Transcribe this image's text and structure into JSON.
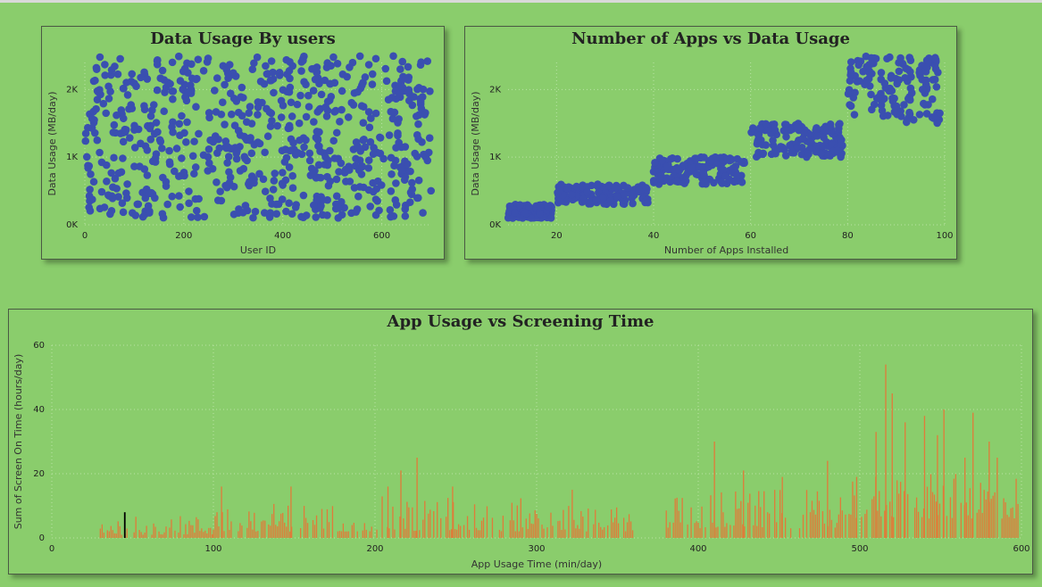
{
  "chart_data": [
    {
      "id": "data-usage-by-users",
      "type": "scatter",
      "title": "Data Usage By users",
      "xlabel": "User ID",
      "ylabel": "Data Usage (MB/day)",
      "xlim": [
        0,
        700
      ],
      "ylim": [
        0,
        2400
      ],
      "xticks": [
        "0",
        "200",
        "400",
        "600"
      ],
      "yticks": [
        "0K",
        "1K",
        "2K"
      ],
      "point_color": "#3a4fb0",
      "n_points": 700,
      "x_range": [
        0,
        700
      ],
      "y_range": [
        100,
        2500
      ],
      "distribution": "uniform random"
    },
    {
      "id": "apps-vs-data-usage",
      "type": "scatter",
      "title": "Number of Apps vs Data Usage",
      "xlabel": "Number of Apps Installed",
      "ylabel": "Data Usage (MB/day)",
      "xlim": [
        10,
        100
      ],
      "ylim": [
        0,
        2400
      ],
      "xticks": [
        "20",
        "40",
        "60",
        "80",
        "100"
      ],
      "yticks": [
        "0K",
        "1K",
        "2K"
      ],
      "point_color": "#3a4fb0",
      "clusters": [
        {
          "x": [
            10,
            19
          ],
          "y": [
            100,
            300
          ],
          "n": 140
        },
        {
          "x": [
            20,
            39
          ],
          "y": [
            300,
            600
          ],
          "n": 140
        },
        {
          "x": [
            40,
            59
          ],
          "y": [
            600,
            1000
          ],
          "n": 140
        },
        {
          "x": [
            60,
            79
          ],
          "y": [
            1000,
            1500
          ],
          "n": 140
        },
        {
          "x": [
            80,
            99
          ],
          "y": [
            1500,
            2500
          ],
          "n": 140
        }
      ]
    },
    {
      "id": "app-usage-vs-screen-time",
      "type": "bar",
      "title": "App Usage vs Screening Time",
      "xlabel": "App Usage Time (min/day)",
      "ylabel": "Sum of Screen On Time (hours/day)",
      "xlim": [
        0,
        600
      ],
      "ylim": [
        0,
        60
      ],
      "xticks": [
        "0",
        "100",
        "200",
        "300",
        "400",
        "500",
        "600"
      ],
      "yticks": [
        "0",
        "20",
        "40",
        "60"
      ],
      "bar_color": "#e07b39",
      "highlight_color": "#000000",
      "bars": [
        {
          "x": 45,
          "y": 8,
          "highlight": true
        },
        {
          "x": 105,
          "y": 16
        },
        {
          "x": 148,
          "y": 16
        },
        {
          "x": 208,
          "y": 16
        },
        {
          "x": 216,
          "y": 21
        },
        {
          "x": 226,
          "y": 25
        },
        {
          "x": 248,
          "y": 16
        },
        {
          "x": 322,
          "y": 15
        },
        {
          "x": 410,
          "y": 30
        },
        {
          "x": 428,
          "y": 21
        },
        {
          "x": 452,
          "y": 19
        },
        {
          "x": 480,
          "y": 24
        },
        {
          "x": 498,
          "y": 19
        },
        {
          "x": 510,
          "y": 33
        },
        {
          "x": 516,
          "y": 54
        },
        {
          "x": 520,
          "y": 45
        },
        {
          "x": 528,
          "y": 36
        },
        {
          "x": 540,
          "y": 38
        },
        {
          "x": 548,
          "y": 32
        },
        {
          "x": 552,
          "y": 40
        },
        {
          "x": 565,
          "y": 25
        },
        {
          "x": 570,
          "y": 39
        },
        {
          "x": 580,
          "y": 30
        },
        {
          "x": 585,
          "y": 25
        }
      ],
      "profile": [
        {
          "from": 30,
          "to": 100,
          "min": 1,
          "max": 7
        },
        {
          "from": 100,
          "to": 200,
          "min": 2,
          "max": 11
        },
        {
          "from": 200,
          "to": 300,
          "min": 2,
          "max": 13
        },
        {
          "from": 300,
          "to": 360,
          "min": 2,
          "max": 10
        },
        {
          "from": 378,
          "to": 490,
          "min": 3,
          "max": 15
        },
        {
          "from": 490,
          "to": 600,
          "min": 6,
          "max": 20
        }
      ]
    }
  ]
}
